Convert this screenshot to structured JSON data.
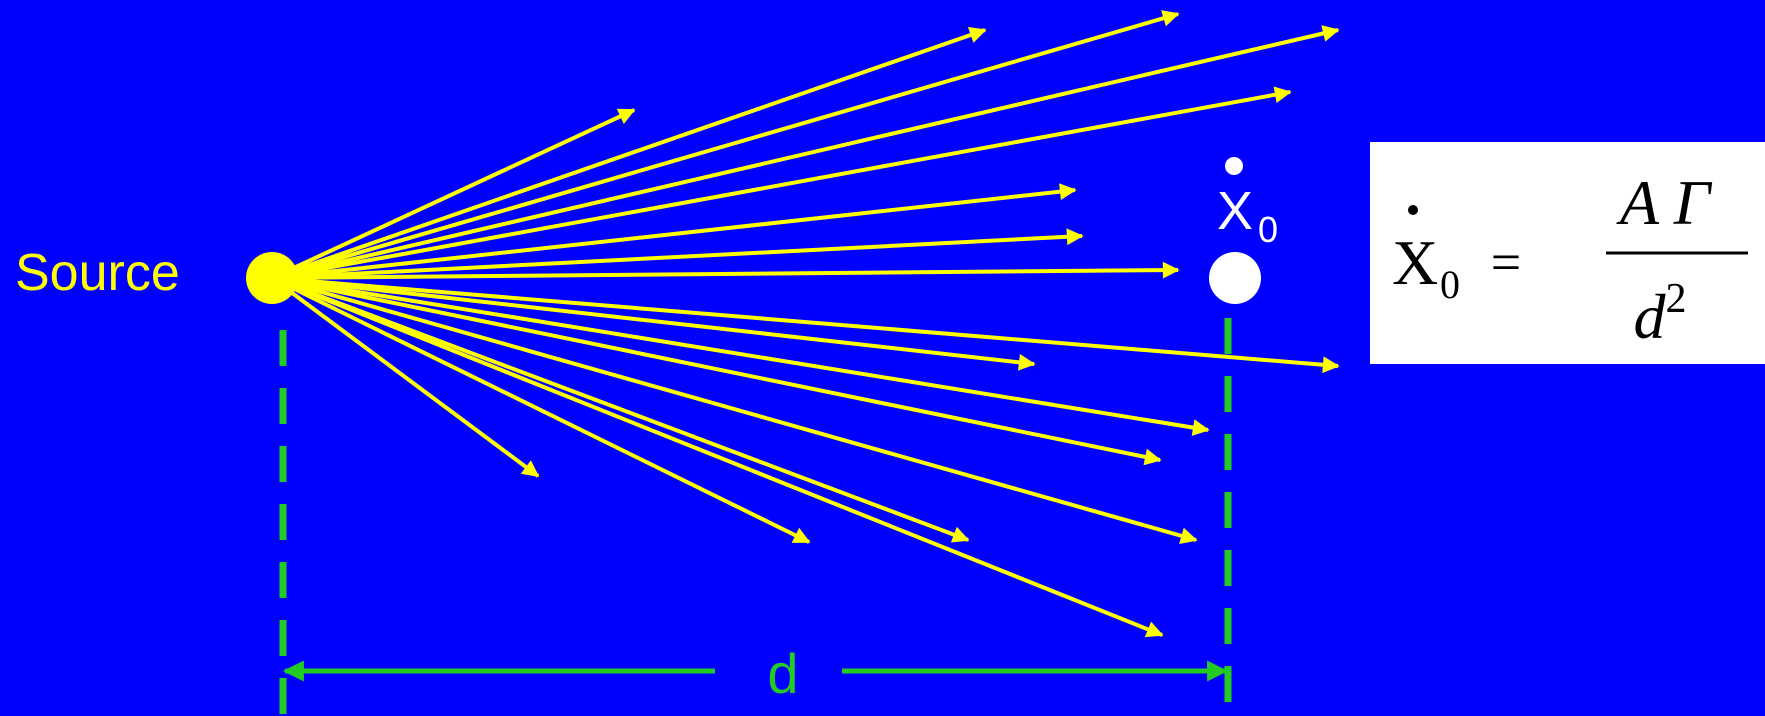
{
  "source": {
    "label": "Source"
  },
  "target": {
    "symbol": "X",
    "subscript": "0"
  },
  "distance": {
    "label": "d"
  },
  "formula": {
    "lhs_symbol": "X",
    "lhs_subscript": "0",
    "equals": "=",
    "numerator": "A Γ",
    "denominator_base": "d",
    "denominator_exponent": "2"
  },
  "colors": {
    "background": "#0000FF",
    "rays": "#FFFF00",
    "source_dot": "#FFFF00",
    "target_dot": "#FFFFFF",
    "dashed_lines": "#22CC22",
    "formula_box": "#FFFFFF",
    "formula_text": "#000000"
  }
}
